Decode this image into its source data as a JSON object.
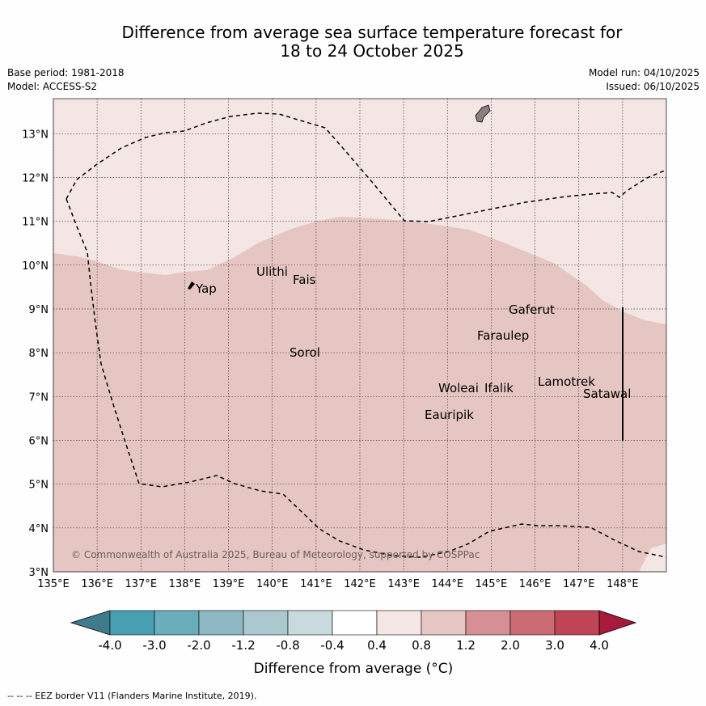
{
  "header": {
    "title_line1": "Difference from average sea surface temperature forecast for",
    "title_line2": "18 to 24 October 2025",
    "base_period": "Base period: 1981-2018",
    "model": "Model: ACCESS-S2",
    "model_run": "Model run: 04/10/2025",
    "issued": "Issued: 06/10/2025"
  },
  "map": {
    "lon_range": [
      135,
      149
    ],
    "lat_range": [
      3,
      13.8
    ],
    "lon_ticks": [
      "135°E",
      "136°E",
      "137°E",
      "138°E",
      "139°E",
      "140°E",
      "141°E",
      "142°E",
      "143°E",
      "144°E",
      "145°E",
      "146°E",
      "147°E",
      "148°E"
    ],
    "lat_ticks": [
      "3°N",
      "4°N",
      "5°N",
      "6°N",
      "7°N",
      "8°N",
      "9°N",
      "10°N",
      "11°N",
      "12°N",
      "13°N"
    ],
    "copyright": "© Commonwealth of Australia 2025, Bureau of Meteorology, supported by COSPPac",
    "places": [
      {
        "name": "Yap"
      },
      {
        "name": "Ulithi"
      },
      {
        "name": "Fais"
      },
      {
        "name": "Sorol"
      },
      {
        "name": "Gaferut"
      },
      {
        "name": "Faraulep"
      },
      {
        "name": "Woleai"
      },
      {
        "name": "Ifalik"
      },
      {
        "name": "Lamotrek"
      },
      {
        "name": "Satawal"
      },
      {
        "name": "Eauripik"
      }
    ],
    "colors": {
      "band_04_08": "#f4e6e5",
      "band_08_12": "#e6c6c2",
      "land": "#8c7f7f"
    }
  },
  "legend": {
    "labels": [
      "-4.0",
      "-3.0",
      "-2.0",
      "-1.2",
      "-0.8",
      "-0.4",
      "0.4",
      "0.8",
      "1.2",
      "2.0",
      "3.0",
      "4.0"
    ],
    "colors": [
      "#3f7b8a",
      "#479fb1",
      "#6aadbb",
      "#8db8c4",
      "#abc8ce",
      "#c8dadd",
      "#ffffff",
      "#f4e6e5",
      "#e6c6c2",
      "#d68f95",
      "#cc6b74",
      "#bf4556",
      "#a71a3b"
    ],
    "title": "Difference from average (°C)"
  },
  "footer": "-- -- -- EEZ border V11 (Flanders Marine Institute, 2019)."
}
